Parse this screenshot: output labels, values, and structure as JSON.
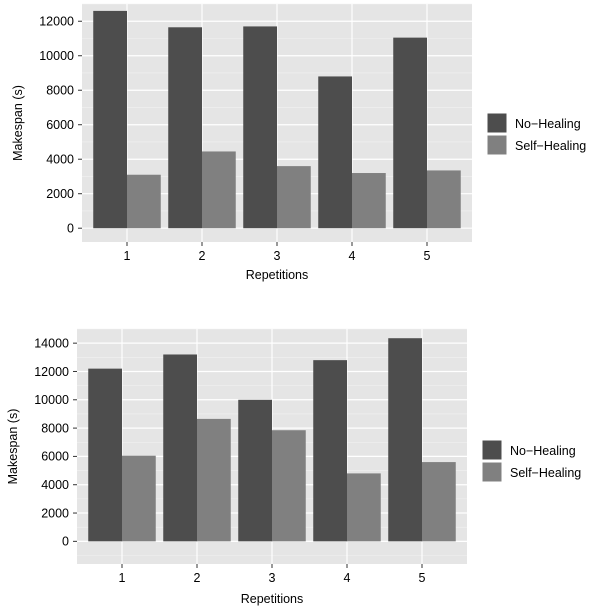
{
  "chart_data": [
    {
      "type": "bar",
      "categories": [
        "1",
        "2",
        "3",
        "4",
        "5"
      ],
      "series": [
        {
          "name": "No−Healing",
          "values": [
            12600,
            11650,
            11700,
            8800,
            11050
          ],
          "color": "#4d4d4d"
        },
        {
          "name": "Self−Healing",
          "values": [
            3100,
            4450,
            3600,
            3200,
            3350
          ],
          "color": "#808080"
        }
      ],
      "xlabel": "Repetitions",
      "ylabel": "Makespan (s)",
      "ylim": [
        -800,
        13000
      ],
      "yticks": [
        "0",
        "2000",
        "4000",
        "6000",
        "8000",
        "10000",
        "12000"
      ],
      "grid": true,
      "legend": "right"
    },
    {
      "type": "bar",
      "categories": [
        "1",
        "2",
        "3",
        "4",
        "5"
      ],
      "series": [
        {
          "name": "No−Healing",
          "values": [
            12200,
            13200,
            10000,
            12800,
            14350
          ],
          "color": "#4d4d4d"
        },
        {
          "name": "Self−Healing",
          "values": [
            6050,
            8650,
            7850,
            4800,
            5600
          ],
          "color": "#808080"
        }
      ],
      "xlabel": "Repetitions",
      "ylabel": "Makespan (s)",
      "ylim": [
        -1600,
        15000
      ],
      "yticks": [
        "0",
        "2000",
        "4000",
        "6000",
        "8000",
        "10000",
        "12000",
        "14000"
      ],
      "grid": true,
      "legend": "right"
    }
  ]
}
